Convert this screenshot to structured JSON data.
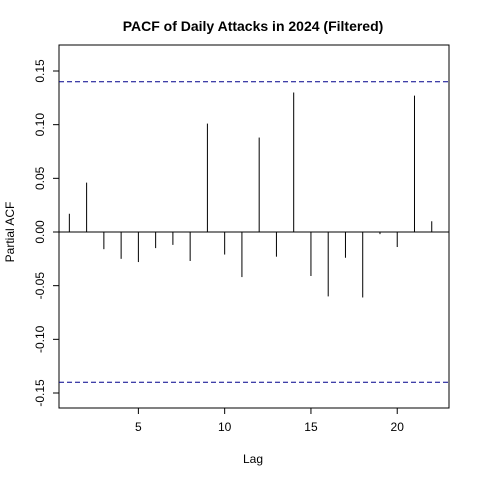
{
  "chart_data": {
    "type": "bar",
    "title": "PACF of Daily Attacks in 2024 (Filtered)",
    "xlabel": "Lag",
    "ylabel": "Partial ACF",
    "x": [
      1,
      2,
      3,
      4,
      5,
      6,
      7,
      8,
      9,
      10,
      11,
      12,
      13,
      14,
      15,
      16,
      17,
      18,
      19,
      20,
      21,
      22
    ],
    "values": [
      0.017,
      0.046,
      -0.016,
      -0.025,
      -0.028,
      -0.015,
      -0.012,
      -0.027,
      0.101,
      -0.021,
      -0.042,
      0.088,
      -0.023,
      0.13,
      -0.041,
      -0.06,
      -0.024,
      -0.061,
      -0.002,
      -0.014,
      0.127,
      0.01
    ],
    "xlim": [
      0.4,
      23
    ],
    "ylim": [
      -0.15,
      0.15
    ],
    "xticks": [
      5,
      10,
      15,
      20
    ],
    "yticks": [
      -0.15,
      -0.1,
      -0.05,
      0.0,
      0.05,
      0.1,
      0.15
    ],
    "yticklabels": [
      "-0.15",
      "-0.10",
      "-0.05",
      "0.00",
      "0.05",
      "0.10",
      "0.15"
    ],
    "confidence_bound": 0.14,
    "bound_color": "#00008b",
    "grid": false,
    "legend": "none"
  }
}
